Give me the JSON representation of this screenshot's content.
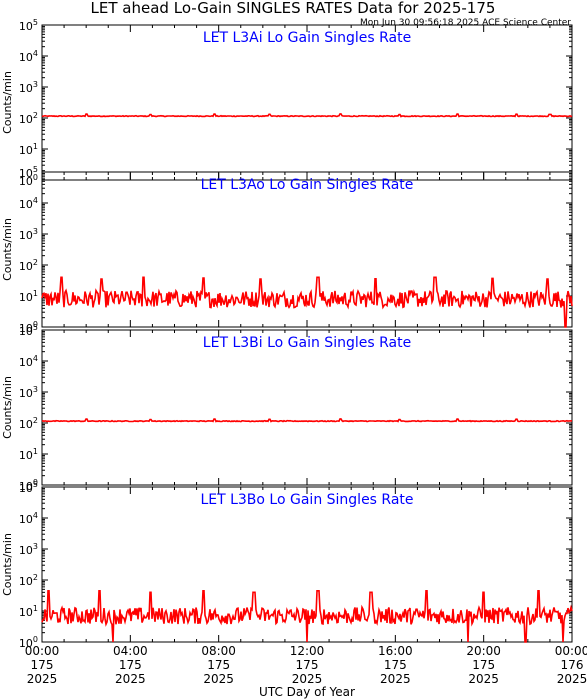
{
  "header": {
    "title": "LET ahead Lo-Gain SINGLES RATES Data for 2025-175",
    "timestamp": "Mon Jun 30 09:56:18 2025 ACE Science Center"
  },
  "colors": {
    "series": "#ff0000",
    "panel_title": "#0000ff",
    "axes": "#000000"
  },
  "x_axis": {
    "label": "UTC Day of Year",
    "ticks": [
      {
        "time": "00:00",
        "day": "175",
        "year": "2025"
      },
      {
        "time": "04:00",
        "day": "175",
        "year": "2025"
      },
      {
        "time": "08:00",
        "day": "175",
        "year": "2025"
      },
      {
        "time": "12:00",
        "day": "175",
        "year": "2025"
      },
      {
        "time": "16:00",
        "day": "175",
        "year": "2025"
      },
      {
        "time": "20:00",
        "day": "175",
        "year": "2025"
      },
      {
        "time": "00:00",
        "day": "176",
        "year": "2025"
      }
    ]
  },
  "chart_data": [
    {
      "type": "line",
      "title": "LET L3Ai Lo Gain Singles Rate",
      "ylabel": "Counts/min",
      "yscale": "log",
      "ylim": [
        1,
        100000
      ],
      "xlim": [
        0,
        24
      ],
      "y_ticks": [
        "10^0",
        "10^1",
        "10^2",
        "10^3",
        "10^4",
        "10^5"
      ],
      "series": [
        {
          "baseline": 115,
          "spikes": [
            [
              2.0,
              135
            ],
            [
              4.9,
              130
            ],
            [
              7.8,
              135
            ],
            [
              10.3,
              132
            ],
            [
              13.5,
              136
            ],
            [
              16.2,
              130
            ],
            [
              18.8,
              135
            ],
            [
              21.5,
              133
            ],
            [
              23.0,
              131
            ]
          ]
        }
      ]
    },
    {
      "type": "line",
      "title": "LET L3Ao Lo Gain Singles Rate",
      "ylabel": "Counts/min",
      "yscale": "log",
      "ylim": [
        1,
        100000
      ],
      "xlim": [
        0,
        24
      ],
      "y_ticks": [
        "10^0",
        "10^1",
        "10^2",
        "10^3",
        "10^4",
        "10^5"
      ],
      "series": [
        {
          "baseline": 8,
          "spikes": [
            [
              0.9,
              40
            ],
            [
              2.7,
              35
            ],
            [
              4.6,
              40
            ],
            [
              7.3,
              38
            ],
            [
              9.9,
              35
            ],
            [
              12.5,
              40
            ],
            [
              15.1,
              36
            ],
            [
              17.8,
              40
            ],
            [
              20.4,
              37
            ],
            [
              22.9,
              35
            ]
          ],
          "dips": [
            [
              23.7,
              1
            ]
          ]
        }
      ]
    },
    {
      "type": "line",
      "title": "LET L3Bi Lo Gain Singles Rate",
      "ylabel": "Counts/min",
      "yscale": "log",
      "ylim": [
        1,
        100000
      ],
      "xlim": [
        0,
        24
      ],
      "y_ticks": [
        "10^0",
        "10^1",
        "10^2",
        "10^3",
        "10^4",
        "10^5"
      ],
      "series": [
        {
          "baseline": 115,
          "spikes": [
            [
              2.0,
              135
            ],
            [
              4.9,
              130
            ],
            [
              7.8,
              135
            ],
            [
              10.3,
              132
            ],
            [
              13.5,
              136
            ],
            [
              16.2,
              130
            ],
            [
              18.8,
              135
            ],
            [
              21.5,
              133
            ]
          ]
        }
      ]
    },
    {
      "type": "line",
      "title": "LET L3Bo Lo Gain Singles Rate",
      "ylabel": "Counts/min",
      "yscale": "log",
      "ylim": [
        1,
        100000
      ],
      "xlim": [
        0,
        24
      ],
      "y_ticks": [
        "10^0",
        "10^1",
        "10^2",
        "10^3",
        "10^4",
        "10^5"
      ],
      "series": [
        {
          "baseline": 7,
          "spikes": [
            [
              0.3,
              45
            ],
            [
              2.6,
              45
            ],
            [
              4.9,
              40
            ],
            [
              7.3,
              45
            ],
            [
              9.6,
              40
            ],
            [
              12.5,
              45
            ],
            [
              14.9,
              40
            ],
            [
              17.4,
              45
            ],
            [
              20.0,
              40
            ],
            [
              22.5,
              45
            ]
          ],
          "dips": [
            [
              3.2,
              1
            ],
            [
              12.0,
              1
            ],
            [
              19.3,
              1
            ],
            [
              21.9,
              1
            ],
            [
              23.6,
              1
            ]
          ]
        }
      ]
    }
  ]
}
